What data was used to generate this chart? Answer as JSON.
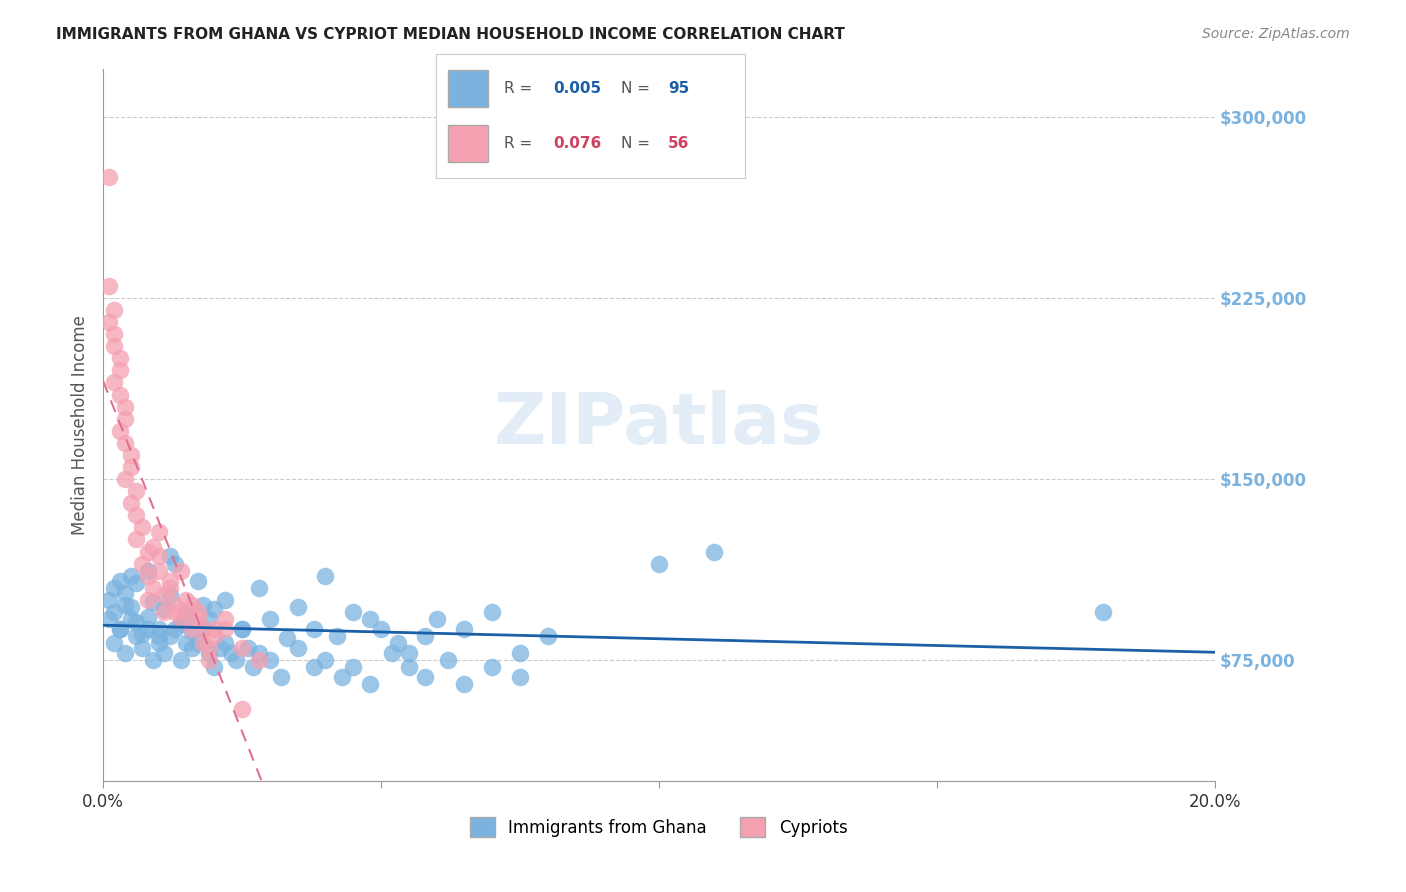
{
  "title": "IMMIGRANTS FROM GHANA VS CYPRIOT MEDIAN HOUSEHOLD INCOME CORRELATION CHART",
  "source": "Source: ZipAtlas.com",
  "xlabel_bottom": [
    "Immigrants from Ghana",
    "Cypriots"
  ],
  "ylabel": "Median Household Income",
  "xlim": [
    0.0,
    0.2
  ],
  "ylim": [
    25000,
    320000
  ],
  "xticks": [
    0.0,
    0.05,
    0.1,
    0.15,
    0.2
  ],
  "xtick_labels": [
    "0.0%",
    "",
    "",
    "",
    "20.0%"
  ],
  "ytick_labels_right": [
    "$75,000",
    "$150,000",
    "$225,000",
    "$300,000"
  ],
  "ytick_values_right": [
    75000,
    150000,
    225000,
    300000
  ],
  "legend_r1": "R = 0.005",
  "legend_n1": "N = 95",
  "legend_r2": "R = 0.076",
  "legend_n2": "N = 56",
  "blue_color": "#7ab3e0",
  "pink_color": "#f4a0b0",
  "blue_line_color": "#1a5fa8",
  "pink_line_color": "#e07090",
  "watermark": "ZIPatlas",
  "background_color": "#ffffff",
  "ghana_x": [
    0.001,
    0.002,
    0.003,
    0.001,
    0.004,
    0.002,
    0.003,
    0.005,
    0.006,
    0.004,
    0.005,
    0.007,
    0.008,
    0.006,
    0.009,
    0.01,
    0.008,
    0.011,
    0.012,
    0.01,
    0.013,
    0.014,
    0.015,
    0.012,
    0.016,
    0.017,
    0.018,
    0.015,
    0.019,
    0.02,
    0.022,
    0.025,
    0.028,
    0.03,
    0.033,
    0.035,
    0.038,
    0.04,
    0.042,
    0.045,
    0.048,
    0.05,
    0.053,
    0.055,
    0.058,
    0.06,
    0.065,
    0.07,
    0.075,
    0.08,
    0.002,
    0.003,
    0.004,
    0.005,
    0.006,
    0.007,
    0.008,
    0.009,
    0.01,
    0.011,
    0.012,
    0.013,
    0.014,
    0.015,
    0.016,
    0.017,
    0.018,
    0.019,
    0.02,
    0.021,
    0.022,
    0.023,
    0.024,
    0.025,
    0.026,
    0.027,
    0.028,
    0.03,
    0.032,
    0.035,
    0.038,
    0.04,
    0.043,
    0.045,
    0.048,
    0.052,
    0.055,
    0.058,
    0.062,
    0.065,
    0.07,
    0.075,
    0.18,
    0.1,
    0.11
  ],
  "ghana_y": [
    100000,
    95000,
    108000,
    92000,
    98000,
    105000,
    88000,
    97000,
    91000,
    103000,
    110000,
    86000,
    93000,
    107000,
    99000,
    85000,
    112000,
    96000,
    102000,
    88000,
    115000,
    90000,
    94000,
    118000,
    87000,
    108000,
    98000,
    82000,
    92000,
    96000,
    100000,
    88000,
    105000,
    92000,
    84000,
    97000,
    88000,
    110000,
    85000,
    95000,
    92000,
    88000,
    82000,
    78000,
    85000,
    92000,
    88000,
    95000,
    78000,
    85000,
    82000,
    88000,
    78000,
    92000,
    85000,
    80000,
    88000,
    75000,
    82000,
    78000,
    85000,
    88000,
    75000,
    92000,
    80000,
    82000,
    88000,
    78000,
    72000,
    80000,
    82000,
    78000,
    75000,
    88000,
    80000,
    72000,
    78000,
    75000,
    68000,
    80000,
    72000,
    75000,
    68000,
    72000,
    65000,
    78000,
    72000,
    68000,
    75000,
    65000,
    72000,
    68000,
    95000,
    115000,
    120000
  ],
  "cypriot_x": [
    0.001,
    0.001,
    0.002,
    0.001,
    0.002,
    0.002,
    0.003,
    0.003,
    0.002,
    0.003,
    0.004,
    0.004,
    0.003,
    0.004,
    0.005,
    0.005,
    0.004,
    0.006,
    0.005,
    0.006,
    0.007,
    0.006,
    0.008,
    0.007,
    0.008,
    0.009,
    0.008,
    0.01,
    0.009,
    0.01,
    0.011,
    0.01,
    0.012,
    0.011,
    0.013,
    0.012,
    0.014,
    0.013,
    0.015,
    0.014,
    0.016,
    0.015,
    0.017,
    0.016,
    0.018,
    0.017,
    0.019,
    0.018,
    0.02,
    0.019,
    0.022,
    0.02,
    0.025,
    0.022,
    0.028,
    0.025
  ],
  "cypriot_y": [
    275000,
    230000,
    220000,
    215000,
    210000,
    205000,
    200000,
    195000,
    190000,
    185000,
    180000,
    175000,
    170000,
    165000,
    160000,
    155000,
    150000,
    145000,
    140000,
    135000,
    130000,
    125000,
    120000,
    115000,
    110000,
    105000,
    100000,
    128000,
    122000,
    118000,
    95000,
    112000,
    108000,
    102000,
    98000,
    105000,
    112000,
    95000,
    100000,
    92000,
    88000,
    95000,
    92000,
    98000,
    88000,
    95000,
    75000,
    82000,
    88000,
    80000,
    92000,
    85000,
    80000,
    88000,
    75000,
    55000
  ]
}
